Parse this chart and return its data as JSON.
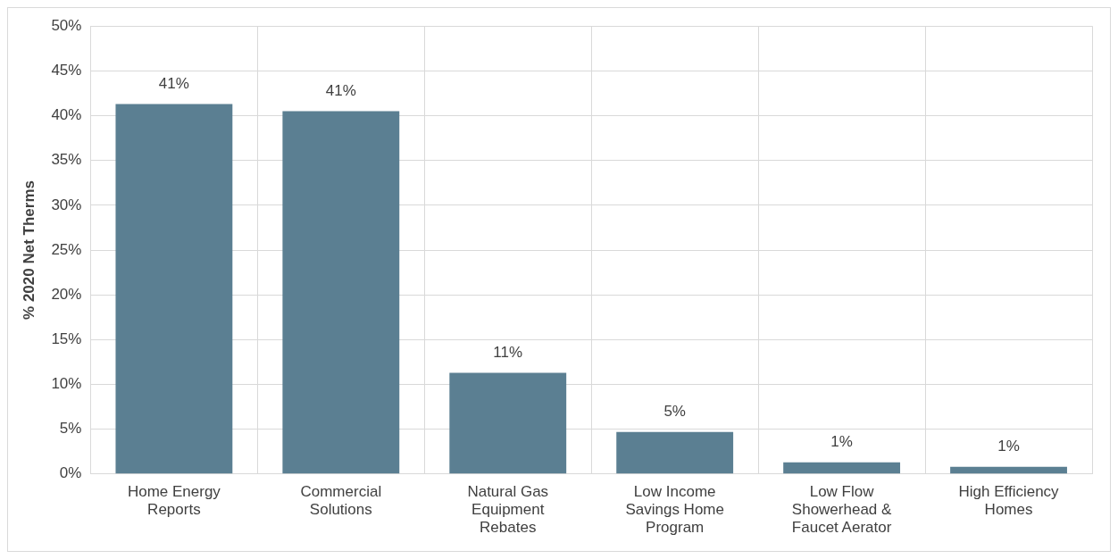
{
  "chart_data": {
    "type": "bar",
    "ylabel": "% 2020 Net Therms",
    "categories": [
      "Home Energy Reports",
      "Commercial Solutions",
      "Natural Gas Equipment Rebates",
      "Low Income Savings Home Program",
      "Low Flow Showerhead & Faucet Aerator",
      "High Efficiency Homes"
    ],
    "values": [
      41.3,
      40.5,
      11.3,
      4.7,
      1.3,
      0.8
    ],
    "value_labels": [
      "41%",
      "41%",
      "11%",
      "5%",
      "1%",
      "1%"
    ],
    "color": "#5b7f92",
    "ylim": [
      0,
      50
    ],
    "yticks": [
      {
        "value": 0,
        "label": "0%"
      },
      {
        "value": 5,
        "label": "5%"
      },
      {
        "value": 10,
        "label": "10%"
      },
      {
        "value": 15,
        "label": "15%"
      },
      {
        "value": 20,
        "label": "20%"
      },
      {
        "value": 25,
        "label": "25%"
      },
      {
        "value": 30,
        "label": "30%"
      },
      {
        "value": 35,
        "label": "35%"
      },
      {
        "value": 40,
        "label": "40%"
      },
      {
        "value": 45,
        "label": "45%"
      },
      {
        "value": 50,
        "label": "50%"
      }
    ],
    "grid": true,
    "legend": false
  }
}
